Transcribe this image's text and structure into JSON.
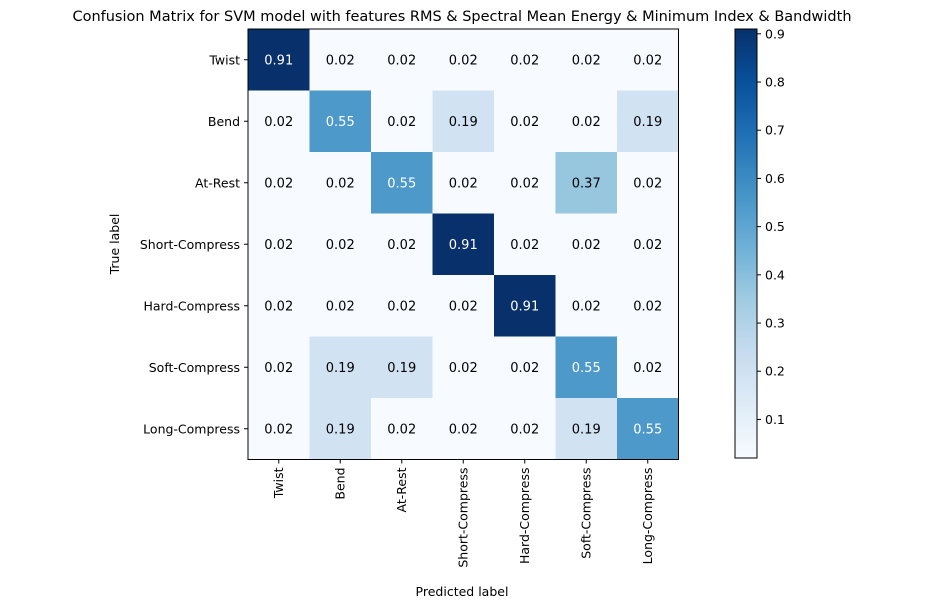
{
  "chart_data": {
    "type": "heatmap",
    "title": "Confusion Matrix for SVM model with features RMS & Spectral Mean Energy & Minimum Index & Bandwidth",
    "xlabel": "Predicted label",
    "ylabel": "True label",
    "x_categories": [
      "Twist",
      "Bend",
      "At-Rest",
      "Short-Compress",
      "Hard-Compress",
      "Soft-Compress",
      "Long-Compress"
    ],
    "y_categories": [
      "Twist",
      "Bend",
      "At-Rest",
      "Short-Compress",
      "Hard-Compress",
      "Soft-Compress",
      "Long-Compress"
    ],
    "values": [
      [
        0.91,
        0.02,
        0.02,
        0.02,
        0.02,
        0.02,
        0.02
      ],
      [
        0.02,
        0.55,
        0.02,
        0.19,
        0.02,
        0.02,
        0.19
      ],
      [
        0.02,
        0.02,
        0.55,
        0.02,
        0.02,
        0.37,
        0.02
      ],
      [
        0.02,
        0.02,
        0.02,
        0.91,
        0.02,
        0.02,
        0.02
      ],
      [
        0.02,
        0.02,
        0.02,
        0.02,
        0.91,
        0.02,
        0.02
      ],
      [
        0.02,
        0.19,
        0.19,
        0.02,
        0.02,
        0.55,
        0.02
      ],
      [
        0.02,
        0.19,
        0.02,
        0.02,
        0.02,
        0.19,
        0.55
      ]
    ],
    "colormap": "Blues",
    "color_range": [
      0.02,
      0.91
    ],
    "colorbar_ticks": [
      "0.1",
      "0.2",
      "0.3",
      "0.4",
      "0.5",
      "0.6",
      "0.7",
      "0.8",
      "0.9"
    ],
    "grid": false
  }
}
